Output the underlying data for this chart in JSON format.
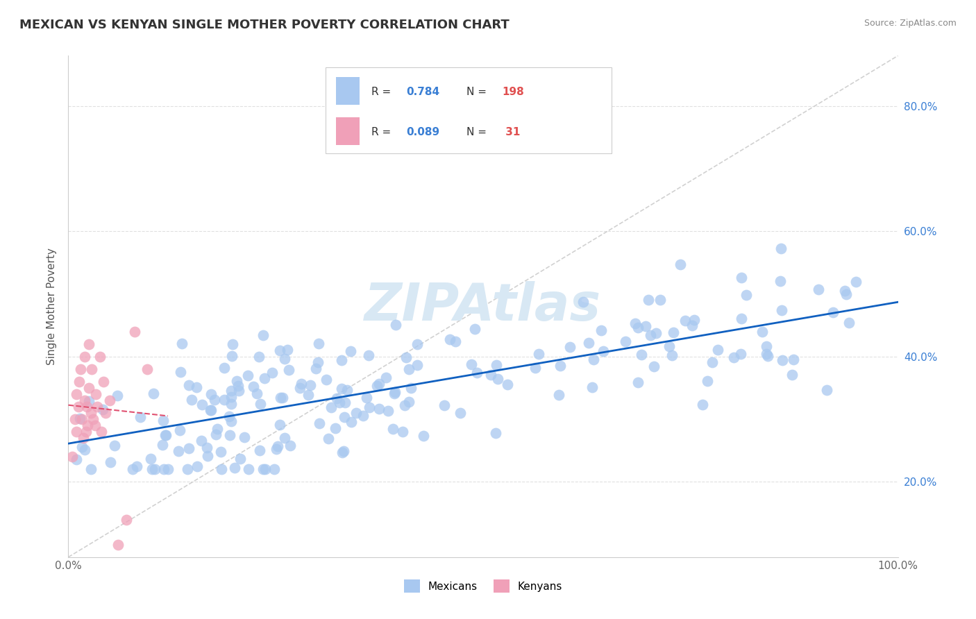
{
  "title": "MEXICAN VS KENYAN SINGLE MOTHER POVERTY CORRELATION CHART",
  "source": "Source: ZipAtlas.com",
  "ylabel": "Single Mother Poverty",
  "xlim": [
    0.0,
    1.0
  ],
  "ylim": [
    0.08,
    0.88
  ],
  "yticks": [
    0.2,
    0.4,
    0.6,
    0.8
  ],
  "ytick_labels": [
    "20.0%",
    "40.0%",
    "60.0%",
    "80.0%"
  ],
  "xticks": [
    0.0,
    1.0
  ],
  "xtick_labels": [
    "0.0%",
    "100.0%"
  ],
  "mexican_color": "#a8c8f0",
  "kenyan_color": "#f0a0b8",
  "trendline1_color": "#1060c0",
  "trendline2_color": "#e05070",
  "ref_line_color": "#cccccc",
  "watermark_color": "#d8e8f4",
  "grid_color": "#e0e0e0",
  "figsize": [
    14.06,
    8.92
  ],
  "dpi": 100
}
